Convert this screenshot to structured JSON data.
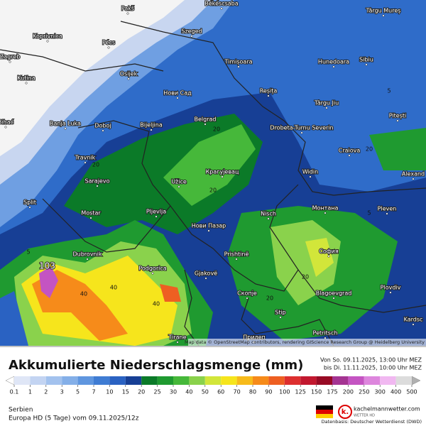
{
  "map": {
    "max_label": "103",
    "attribution": "Map data © OpenStreetMap contributors, rendering GIScience Research Group @ Heidelberg University",
    "places": [
      "Békéscsaba",
      "Pakš",
      "Szeged",
      "Koprivnica",
      "Pécs",
      "Zagreb",
      "Kutina",
      "Osijek",
      "Timișoara",
      "Hunedoara",
      "Sibiu",
      "Târgu Mureș",
      "Нови Сад",
      "Reșița",
      "Târgu Jiu",
      "Pitești",
      "Banja Luka",
      "Doboj",
      "Bijeljina",
      "Belgrad",
      "Drobeta-Turnu Severin",
      "Craiova",
      "Travnik",
      "Крагујевац",
      "Widin",
      "Alexand",
      "Sarajevo",
      "Užice",
      "Монтана",
      "Pleven",
      "Split",
      "Mostar",
      "Pljevlja",
      "Nisch",
      "Нови Пазар",
      "София",
      "Dubrovnik",
      "Podgorica",
      "Prishtinë",
      "Gjakovë",
      "Скопје",
      "Blagoevgrad",
      "Plovdiv",
      "Stip",
      "Tirane",
      "Прилеп",
      "Petritsch",
      "Bihać",
      "Kardsc"
    ],
    "contour_labels": [
      20,
      20,
      20,
      20,
      40,
      40,
      5,
      5,
      5,
      20,
      20,
      40
    ]
  },
  "legend": {
    "title": "Akkumulierte Niederschlagsmenge (mm)",
    "period_from": "Von So. 09.11.2025, 13:00 Uhr MEZ",
    "period_to": "bis Di. 11.11.2025, 10:00 Uhr MEZ",
    "ticks": [
      0.1,
      1,
      2,
      3,
      5,
      7,
      10,
      15,
      20,
      25,
      30,
      40,
      50,
      60,
      70,
      80,
      90,
      100,
      125,
      150,
      175,
      200,
      250,
      300,
      400,
      500
    ],
    "colors": [
      "#dfe6f6",
      "#c3d4f2",
      "#a3c2ee",
      "#84afe8",
      "#5f96df",
      "#3f7cd3",
      "#2a62c2",
      "#173f95",
      "#0b7a28",
      "#1f9a30",
      "#46b83a",
      "#8ad24c",
      "#d2e63a",
      "#f6e51c",
      "#f7bb1b",
      "#f68b1a",
      "#ee5f22",
      "#dd2f2f",
      "#c2182f",
      "#980b25",
      "#a43492",
      "#c454c2",
      "#dd86dd",
      "#f1b8f1",
      "#dcdcdc"
    ],
    "under_color": "#ffffff",
    "over_color": "#b0b0b0"
  },
  "footer": {
    "region": "Serbien",
    "model": "Europa HD (5 Tage) vom  09.11.2025/12z",
    "brand": "kachelmannwetter.com",
    "brand_sub": "WETTER HD",
    "source": "Datenbasis: Deutscher Wetterdienst (DWD)"
  }
}
